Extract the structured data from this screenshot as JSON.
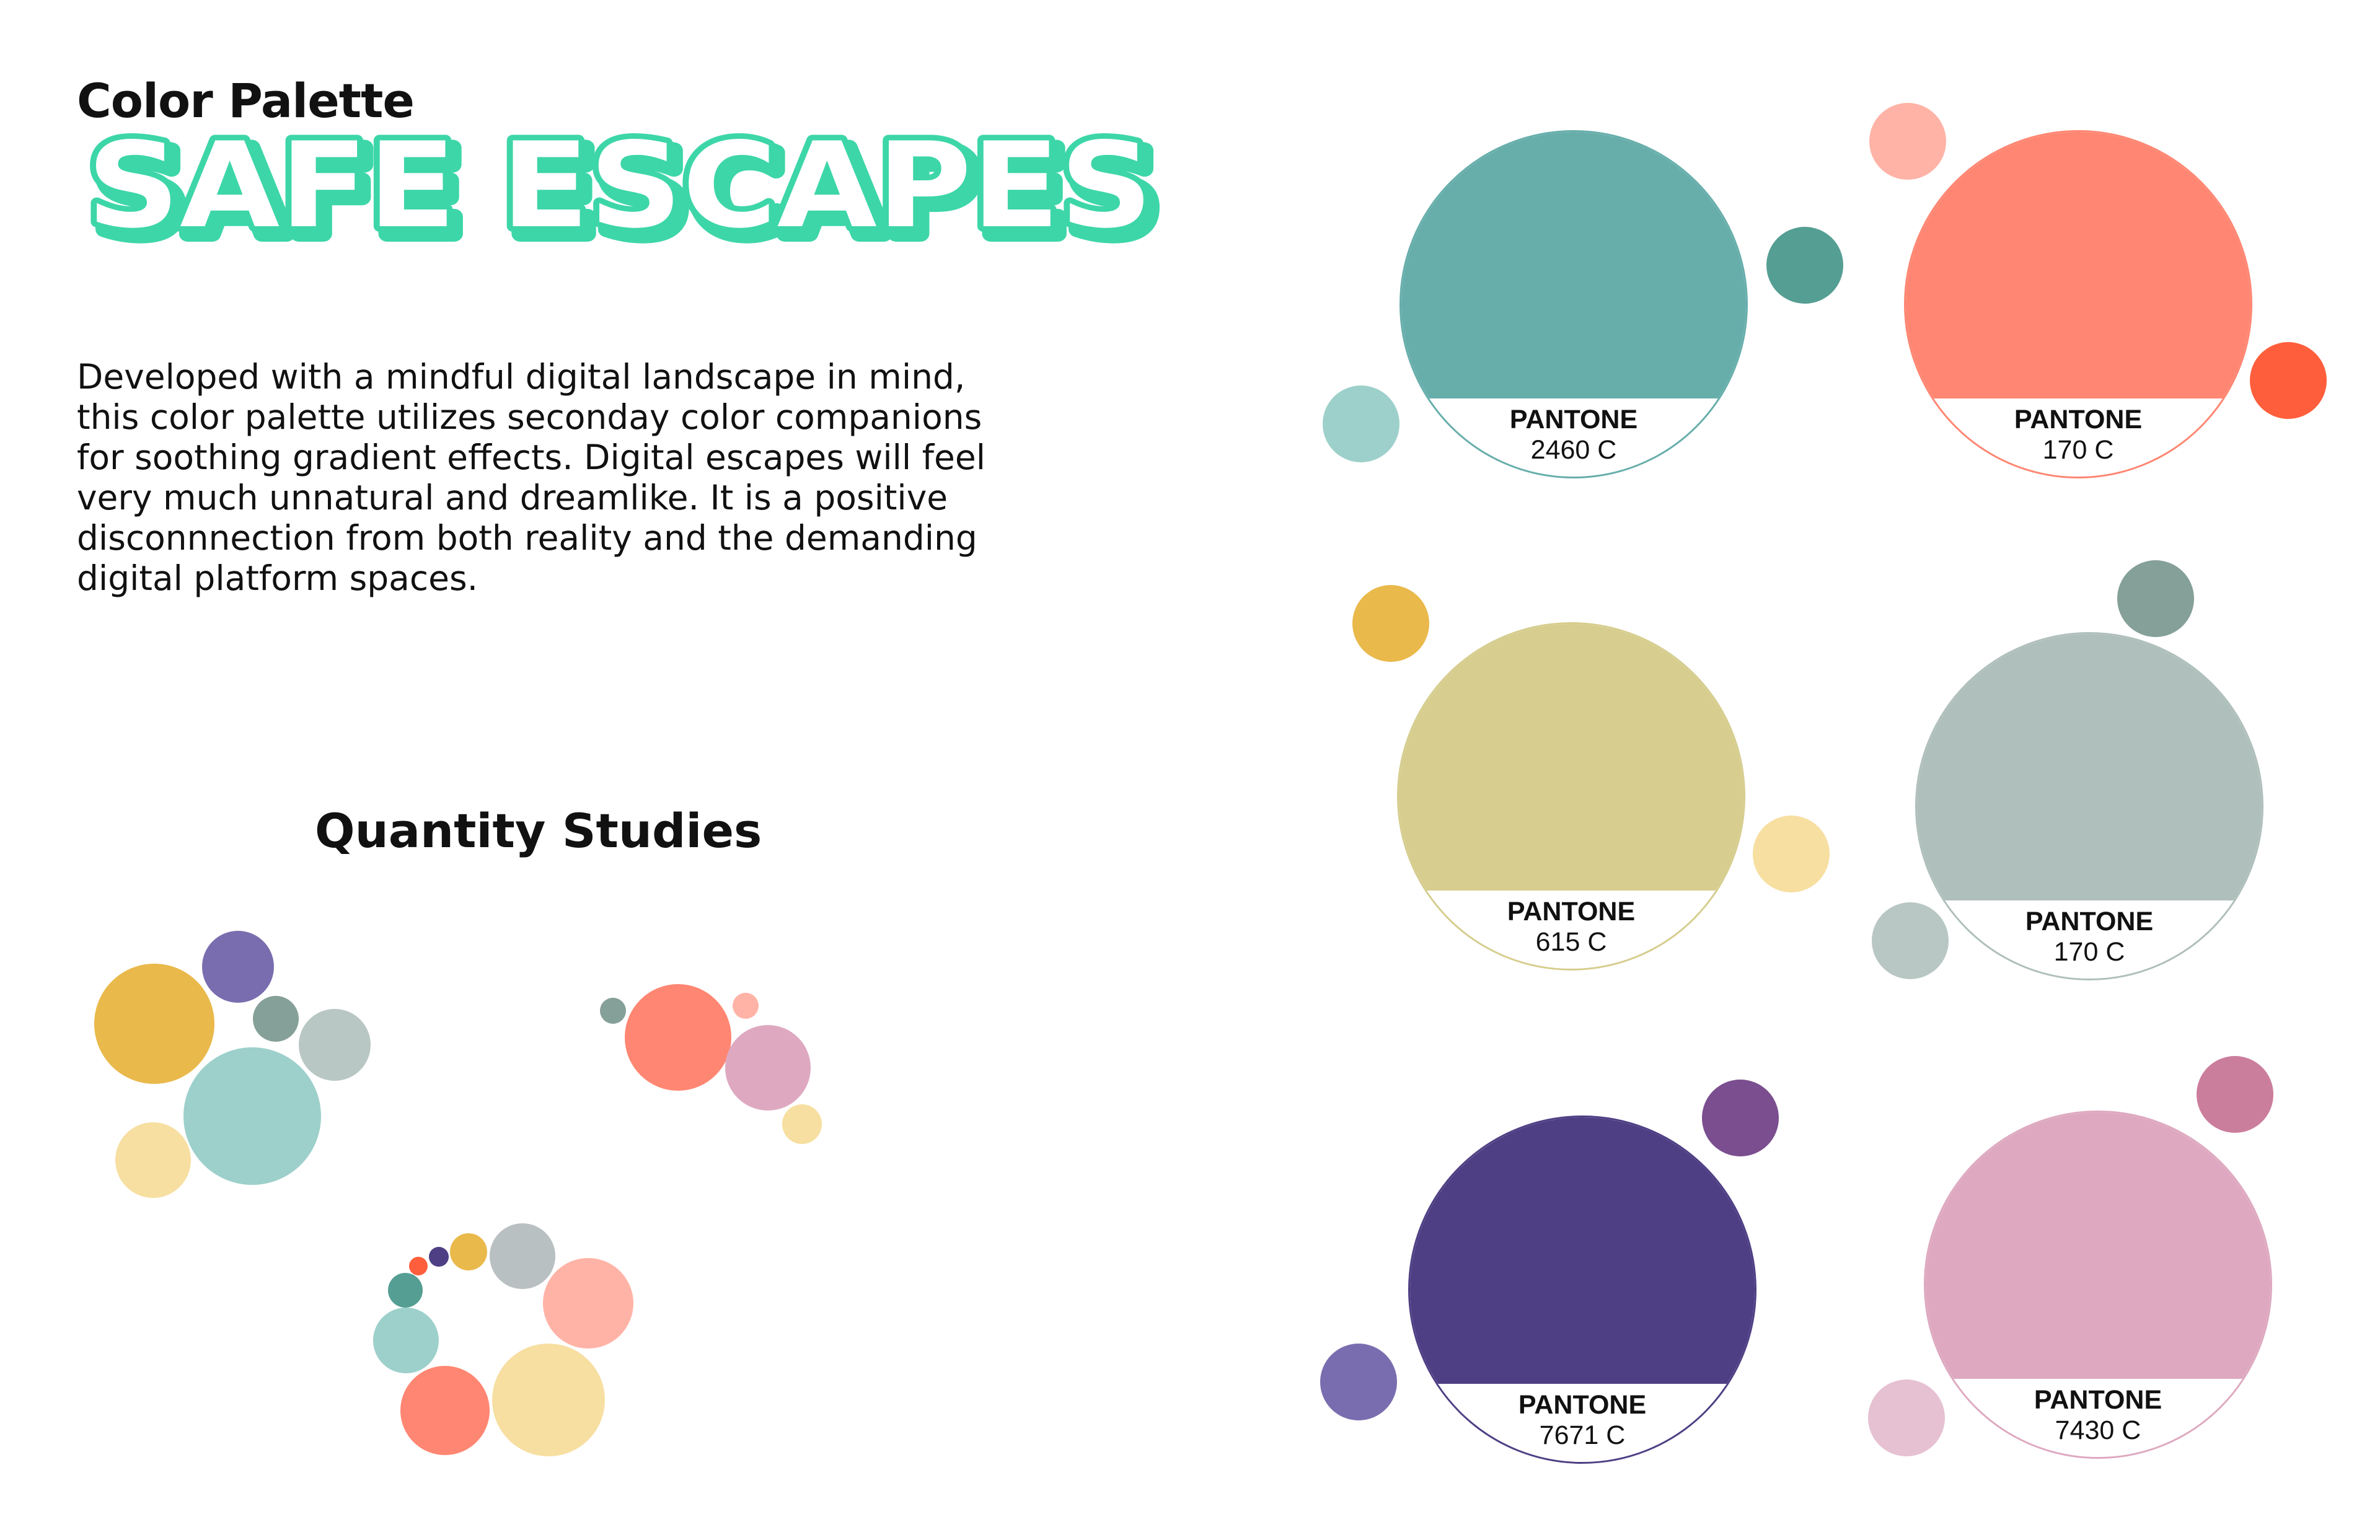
{
  "header": {
    "subtitle": "Color Palette",
    "brand_title": "SAFE ESCAPES",
    "brand_fill": "#ffffff",
    "brand_shadow": "#3dd6a8"
  },
  "description": "Developed with a mindful digital landscape in mind, this color palette utilizes seconday color companions for soothing gradient effects. Digital escapes will feel very much unnatural and dreamlike. It is a positive disconnnection from both reality and the demanding digital platform spaces.",
  "quantity_studies": {
    "title": "Quantity Studies"
  },
  "swatches": [
    {
      "brand": "PANTONE",
      "code": "2460 C",
      "color": "#67aeab",
      "companions": [
        "#559e93",
        "#9dd0cb"
      ]
    },
    {
      "brand": "PANTONE",
      "code": "170 C",
      "color": "#ff8672",
      "companions": [
        "#ffb3a6",
        "#ff5e3c"
      ]
    },
    {
      "brand": "PANTONE",
      "code": "615 C",
      "color": "#d6cd8e",
      "companions": [
        "#e9b94b",
        "#f7dfa1"
      ]
    },
    {
      "brand": "PANTONE",
      "code": "170 C",
      "color": "#afbfbb",
      "companions": [
        "#85a098",
        "#b9c7c4"
      ]
    },
    {
      "brand": "PANTONE",
      "code": "7671 C",
      "color": "#4e3f84",
      "companions": [
        "#7a4e8f",
        "#7a6daf"
      ]
    },
    {
      "brand": "PANTONE",
      "code": "7430 C",
      "color": "#dea9c0",
      "companions": [
        "#cb7d9c",
        "#e6c1d2"
      ]
    }
  ]
}
